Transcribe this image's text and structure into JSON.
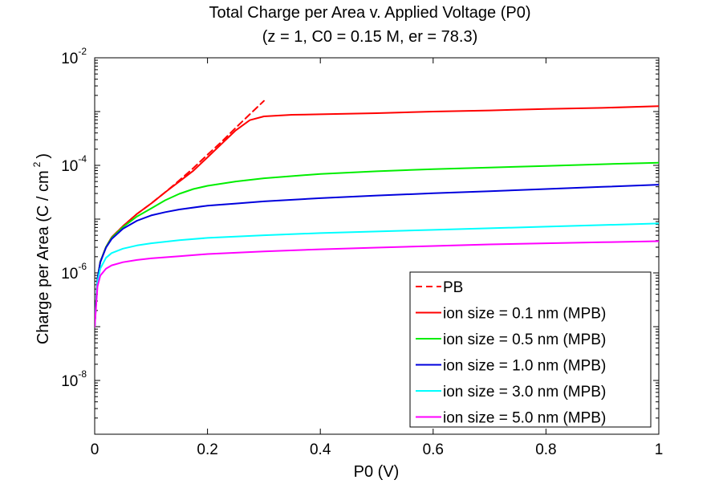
{
  "chart_data": {
    "type": "line",
    "title": "Total Charge per Area v. Applied Voltage (P0)",
    "subtitle": "(z = 1, C0 = 0.15 M, er = 78.3)",
    "xlabel": "P0 (V)",
    "ylabel_main": "Charge per Area (C / cm",
    "ylabel_sup": "2",
    "ylabel_close": ")",
    "xlim": [
      0,
      1
    ],
    "ylim": [
      1e-09,
      0.01
    ],
    "yscale": "log",
    "grid": false,
    "legend_position": "bottom-right",
    "x_ticks": [
      {
        "value": 0,
        "label": "0"
      },
      {
        "value": 0.2,
        "label": "0.2"
      },
      {
        "value": 0.4,
        "label": "0.4"
      },
      {
        "value": 0.6,
        "label": "0.6"
      },
      {
        "value": 0.8,
        "label": "0.8"
      },
      {
        "value": 1,
        "label": "1"
      }
    ],
    "y_ticks": [
      {
        "value": 1e-08,
        "base": "10",
        "exp": "-8"
      },
      {
        "value": 1e-06,
        "base": "10",
        "exp": "-6"
      },
      {
        "value": 0.0001,
        "base": "10",
        "exp": "-4"
      },
      {
        "value": 0.01,
        "base": "10",
        "exp": "-2"
      }
    ],
    "series": [
      {
        "name": "PB",
        "color": "#ff0000",
        "dash": true,
        "x": [
          0.0,
          0.005,
          0.01,
          0.02,
          0.03,
          0.05,
          0.075,
          0.1,
          0.125,
          0.15,
          0.175,
          0.2,
          0.225,
          0.25,
          0.275,
          0.3
        ],
        "y": [
          1e-07,
          7.85e-07,
          1.61e-06,
          3.02e-06,
          4.6e-06,
          7.4e-06,
          1.25e-05,
          1.95e-05,
          3.16e-05,
          5.24e-05,
          8.91e-05,
          0.000158,
          0.000275,
          0.0005,
          0.000891,
          0.00158
        ]
      },
      {
        "name": "ion size = 0.1 nm (MPB)",
        "color": "#ff0000",
        "dash": false,
        "x": [
          0.0,
          0.005,
          0.01,
          0.02,
          0.03,
          0.05,
          0.075,
          0.1,
          0.125,
          0.15,
          0.175,
          0.2,
          0.225,
          0.25,
          0.275,
          0.3,
          0.35,
          0.4,
          0.5,
          0.6,
          0.7,
          0.8,
          0.9,
          1.0
        ],
        "y": [
          1e-07,
          7.85e-07,
          1.61e-06,
          3.02e-06,
          4.6e-06,
          7.4e-06,
          1.25e-05,
          1.95e-05,
          3.16e-05,
          5e-05,
          7.94e-05,
          0.000141,
          0.000251,
          0.000447,
          0.000692,
          0.000813,
          0.000871,
          0.000891,
          0.000933,
          0.001,
          0.00105,
          0.00112,
          0.00117,
          0.00126
        ]
      },
      {
        "name": "ion size = 0.5 nm (MPB)",
        "color": "#00ee00",
        "dash": false,
        "x": [
          0.0,
          0.005,
          0.01,
          0.02,
          0.03,
          0.05,
          0.075,
          0.1,
          0.125,
          0.15,
          0.175,
          0.2,
          0.25,
          0.3,
          0.4,
          0.5,
          0.6,
          0.7,
          0.8,
          0.9,
          1.0
        ],
        "y": [
          1e-07,
          7.85e-07,
          1.61e-06,
          3.02e-06,
          4.47e-06,
          7.08e-06,
          1.12e-05,
          1.58e-05,
          2.24e-05,
          2.95e-05,
          3.63e-05,
          4.17e-05,
          5.01e-05,
          5.75e-05,
          6.92e-05,
          7.76e-05,
          8.51e-05,
          9.12e-05,
          9.77e-05,
          0.000105,
          0.000112
        ]
      },
      {
        "name": "ion size = 1.0 nm (MPB)",
        "color": "#0000dd",
        "dash": false,
        "x": [
          0.0,
          0.005,
          0.01,
          0.02,
          0.03,
          0.05,
          0.075,
          0.1,
          0.125,
          0.15,
          0.2,
          0.25,
          0.3,
          0.4,
          0.5,
          0.6,
          0.7,
          0.8,
          0.9,
          1.0
        ],
        "y": [
          1e-07,
          7.85e-07,
          1.58e-06,
          2.95e-06,
          4.27e-06,
          6.61e-06,
          9.33e-06,
          1.17e-05,
          1.35e-05,
          1.51e-05,
          1.78e-05,
          1.95e-05,
          2.14e-05,
          2.45e-05,
          2.75e-05,
          3.02e-05,
          3.31e-05,
          3.63e-05,
          3.98e-05,
          4.37e-05
        ]
      },
      {
        "name": "ion size = 3.0 nm (MPB)",
        "color": "#00ffff",
        "dash": false,
        "x": [
          0.0,
          0.005,
          0.01,
          0.02,
          0.03,
          0.05,
          0.075,
          0.1,
          0.15,
          0.2,
          0.3,
          0.4,
          0.5,
          0.6,
          0.7,
          0.8,
          0.9,
          1.0
        ],
        "y": [
          1e-07,
          6.92e-07,
          1.2e-06,
          1.91e-06,
          2.34e-06,
          2.82e-06,
          3.24e-06,
          3.55e-06,
          4.07e-06,
          4.47e-06,
          5.01e-06,
          5.5e-06,
          5.89e-06,
          6.31e-06,
          6.76e-06,
          7.24e-06,
          7.76e-06,
          8.32e-06
        ]
      },
      {
        "name": "ion size = 5.0 nm (MPB)",
        "color": "#ff00ff",
        "dash": false,
        "x": [
          0.0,
          0.005,
          0.01,
          0.02,
          0.03,
          0.05,
          0.075,
          0.1,
          0.15,
          0.2,
          0.3,
          0.4,
          0.5,
          0.6,
          0.7,
          0.8,
          0.9,
          1.0
        ],
        "y": [
          1e-07,
          5.62e-07,
          8.91e-07,
          1.2e-06,
          1.38e-06,
          1.58e-06,
          1.74e-06,
          1.86e-06,
          2.04e-06,
          2.24e-06,
          2.51e-06,
          2.75e-06,
          2.95e-06,
          3.16e-06,
          3.39e-06,
          3.55e-06,
          3.72e-06,
          3.89e-06
        ]
      }
    ]
  }
}
